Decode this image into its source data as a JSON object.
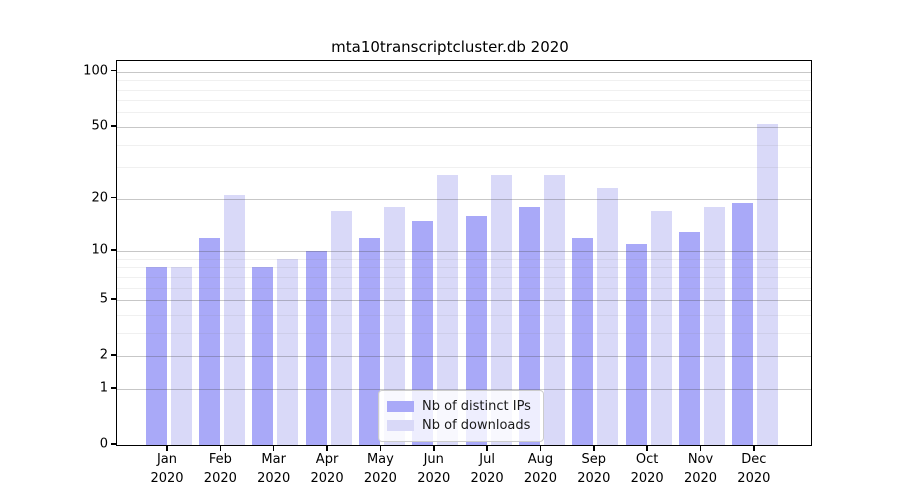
{
  "title": "mta10transcriptcluster.db 2020",
  "colors": {
    "ips_bar": "#a9a9f8",
    "downloads_bar": "#d9d9f8",
    "axis": "#000000",
    "major_grid": "#c7c7c7",
    "minor_grid": "#ececec"
  },
  "chart_data": {
    "type": "bar",
    "title": "mta10transcriptcluster.db 2020",
    "categories": [
      "Jan",
      "Feb",
      "Mar",
      "Apr",
      "May",
      "Jun",
      "Jul",
      "Aug",
      "Sep",
      "Oct",
      "Nov",
      "Dec"
    ],
    "x_sublabel": "2020",
    "series": [
      {
        "name": "Nb of distinct IPs",
        "color": "#a9a9f8",
        "values": [
          8,
          12,
          8,
          10,
          12,
          15,
          16,
          18,
          12,
          11,
          13,
          19
        ]
      },
      {
        "name": "Nb of downloads",
        "color": "#d9d9f8",
        "values": [
          8,
          21,
          9,
          17,
          18,
          27,
          27,
          27,
          23,
          17,
          18,
          52
        ]
      }
    ],
    "xlabel": "",
    "ylabel": "",
    "y_scale": "log1p",
    "y_ticks": [
      0,
      1,
      2,
      5,
      10,
      20,
      50,
      100
    ],
    "y_minor_ticks": [
      3,
      4,
      6,
      7,
      8,
      9,
      30,
      40,
      60,
      70,
      80,
      90
    ],
    "ylim": [
      0,
      115
    ],
    "grid": true,
    "legend_position": "lower center"
  },
  "legend": {
    "items": [
      {
        "label": "Nb of distinct IPs"
      },
      {
        "label": "Nb of downloads"
      }
    ]
  }
}
